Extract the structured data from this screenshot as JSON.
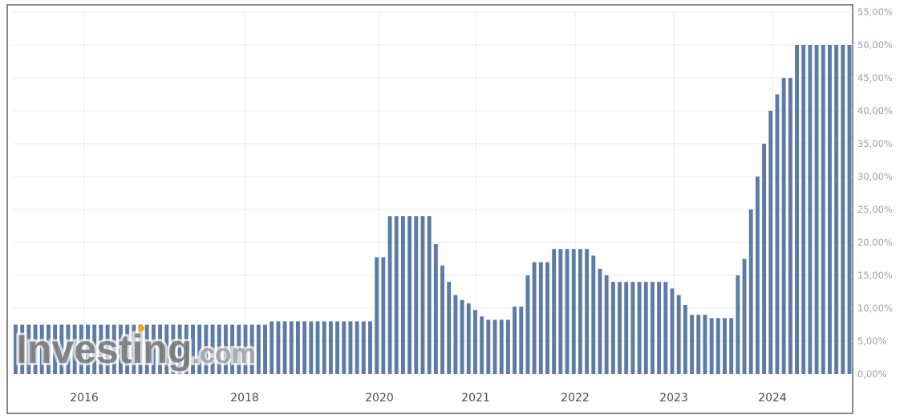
{
  "chart_data": {
    "type": "bar",
    "title": "",
    "xlabel": "",
    "ylabel": "",
    "ylim": [
      0,
      55
    ],
    "y_ticks": [
      "0,00%",
      "5,00%",
      "10,00%",
      "15,00%",
      "20,00%",
      "25,00%",
      "30,00%",
      "35,00%",
      "40,00%",
      "45,00%",
      "50,00%",
      "55,00%"
    ],
    "x_ticks": [
      "2016",
      "2018",
      "2020",
      "2021",
      "2022",
      "2023",
      "2024"
    ],
    "grid": true,
    "bar_color": "#5c7ba5",
    "grid_color": "#e8ebef",
    "series": [
      {
        "values": [
          7.5,
          7.5,
          7.5,
          7.5,
          7.5,
          7.5,
          7.5,
          7.5,
          7.5,
          7.5,
          7.5,
          7.5,
          7.5,
          7.5,
          7.5,
          7.5,
          7.5,
          7.5,
          7.5,
          7.5,
          7.5,
          7.5,
          7.5,
          7.5,
          7.5,
          7.5,
          7.5,
          7.5,
          7.5,
          7.5,
          7.5,
          7.5,
          7.5,
          7.5,
          7.5,
          7.5,
          7.5,
          7.5,
          7.5,
          8,
          8,
          8,
          8,
          8,
          8,
          8,
          8,
          8,
          8,
          8,
          8,
          8,
          8,
          8,
          8,
          17.75,
          17.75,
          24,
          24,
          24,
          24,
          24,
          24,
          24,
          19.75,
          16.5,
          14,
          12,
          11.25,
          10.75,
          9.75,
          8.75,
          8.25,
          8.25,
          8.25,
          8.25,
          10.25,
          10.25,
          15,
          17,
          17,
          17,
          19,
          19,
          19,
          19,
          19,
          19,
          18,
          16,
          15,
          14,
          14,
          14,
          14,
          14,
          14,
          14,
          14,
          14,
          13,
          12,
          10.5,
          9,
          9,
          9,
          8.5,
          8.5,
          8.5,
          8.5,
          15,
          17.5,
          25,
          30,
          35,
          40,
          42.5,
          45,
          45,
          50,
          50,
          50,
          50,
          50,
          50,
          50,
          50,
          50
        ]
      }
    ]
  },
  "watermark": {
    "brand": "Investing",
    "suffix": ".com"
  }
}
